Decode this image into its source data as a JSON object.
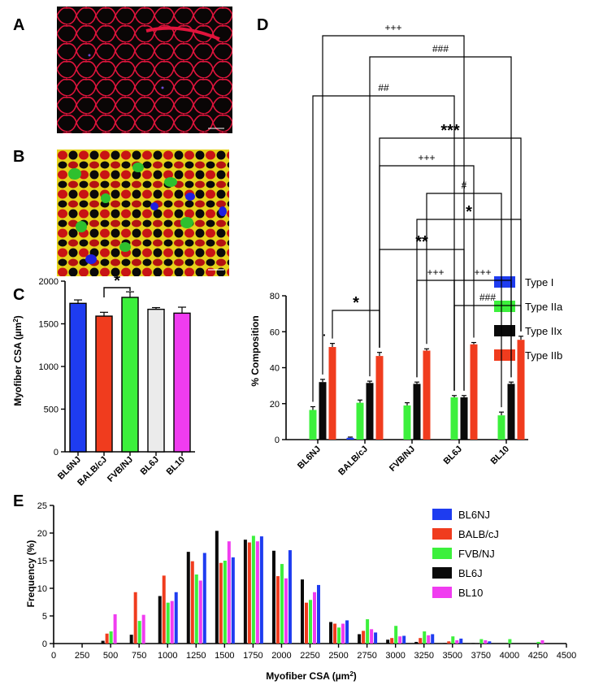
{
  "panel_labels": {
    "a": "A",
    "b": "B",
    "c": "C",
    "d": "D",
    "e": "E"
  },
  "micrograph_a": {
    "stain_colors": {
      "background": "#0a0606",
      "membrane": "#e0143c",
      "nuclei": "#3a2aa0"
    }
  },
  "micrograph_b": {
    "stain_colors": {
      "type_I": "#1f1fe0",
      "type_IIa": "#2ec02e",
      "type_IIx": "#0a0a0a",
      "type_IIb": "#c81414",
      "membrane": "#f2e020"
    }
  },
  "chart_data": [
    {
      "panel": "C",
      "type": "bar",
      "categories": [
        "BL6NJ",
        "BALB/cJ",
        "FVB/NJ",
        "BL6J",
        "BL10"
      ],
      "values": [
        1740,
        1590,
        1810,
        1670,
        1625
      ],
      "errors": [
        40,
        45,
        65,
        20,
        70
      ],
      "colors": [
        "#1e3cf0",
        "#f03c1e",
        "#3cf03c",
        "#ebebeb",
        "#f03cf0"
      ],
      "ylabel_prefix": "Myofiber CSA (µm",
      "ylabel_sup": "2",
      "ylabel_suffix": ")",
      "yticks": [
        "0",
        "500",
        "1000",
        "1500",
        "2000"
      ],
      "ylim": [
        0,
        2000
      ],
      "annotations": [
        {
          "between": [
            "BALB/cJ",
            "FVB/NJ"
          ],
          "label": "*"
        }
      ]
    },
    {
      "panel": "D",
      "type": "bar",
      "categories": [
        "BL6NJ",
        "BALB/cJ",
        "FVB/NJ",
        "BL6J",
        "BL10"
      ],
      "series": [
        {
          "name": "Type I",
          "color": "#1e3cf0",
          "values": [
            0,
            1.0,
            0,
            0,
            0
          ],
          "errors": [
            0,
            0.4,
            0,
            0,
            0
          ]
        },
        {
          "name": "Type IIa",
          "color": "#3cf03c",
          "values": [
            16.5,
            20.5,
            19.0,
            23.5,
            13.5
          ],
          "errors": [
            1.8,
            1.5,
            1.5,
            1.0,
            1.8
          ]
        },
        {
          "name": "Type IIx",
          "color": "#0a0a0a",
          "values": [
            32,
            31.5,
            31,
            23.5,
            31
          ],
          "errors": [
            1.5,
            1.0,
            1.0,
            1.0,
            1.0
          ]
        },
        {
          "name": "Type IIb",
          "color": "#f03c1e",
          "values": [
            51.5,
            46.5,
            49.5,
            53,
            55.5
          ],
          "errors": [
            2.0,
            2.0,
            1.0,
            1.0,
            2.0
          ]
        }
      ],
      "ylabel": "% Composition",
      "yticks": [
        "0",
        "20",
        "40",
        "60",
        "80"
      ],
      "ylim": [
        0,
        80
      ],
      "dot_annotation": "·",
      "significance": [
        {
          "label": "+++",
          "size": "small"
        },
        {
          "label": "###",
          "size": "small"
        },
        {
          "label": "##",
          "size": "small"
        },
        {
          "label": "***",
          "size": "big"
        },
        {
          "label": "+++",
          "size": "small"
        },
        {
          "label": "#",
          "size": "small"
        },
        {
          "label": "*",
          "size": "big"
        },
        {
          "label": "**",
          "size": "big"
        },
        {
          "label": "+++",
          "size": "small"
        },
        {
          "label": "+++",
          "size": "small"
        },
        {
          "label": "###",
          "size": "small"
        },
        {
          "label": "*",
          "size": "big"
        }
      ]
    },
    {
      "panel": "E",
      "type": "bar",
      "x": [
        500,
        750,
        1000,
        1250,
        1500,
        1750,
        2000,
        2250,
        2500,
        2750,
        3000,
        3250,
        3500,
        3750,
        4000,
        4250
      ],
      "series": [
        {
          "name": "BL6NJ",
          "color": "#1e3cf0",
          "values": [
            0,
            0,
            9.3,
            16.4,
            15.6,
            19.4,
            16.9,
            10.6,
            4.2,
            2.0,
            1.4,
            1.7,
            0.9,
            0.4,
            0,
            0
          ]
        },
        {
          "name": "BALB/cJ",
          "color": "#f03c1e",
          "values": [
            1.8,
            9.3,
            12.3,
            14.9,
            14.6,
            18.3,
            12.2,
            7.4,
            3.6,
            2.3,
            1.0,
            1.0,
            0.4,
            0,
            0,
            0
          ]
        },
        {
          "name": "FVB/NJ",
          "color": "#3cf03c",
          "values": [
            2.2,
            4.1,
            7.4,
            12.5,
            15.0,
            19.5,
            14.4,
            7.9,
            2.9,
            4.4,
            3.2,
            2.2,
            1.3,
            0.8,
            0.8,
            0.3
          ]
        },
        {
          "name": "BL6J",
          "color": "#0a0a0a",
          "values": [
            0.5,
            1.6,
            8.6,
            16.6,
            20.4,
            18.8,
            16.8,
            11.6,
            3.9,
            1.7,
            0.7,
            0.3,
            0.1,
            0.1,
            0,
            0
          ]
        },
        {
          "name": "BL10",
          "color": "#f03cf0",
          "values": [
            5.3,
            5.2,
            7.7,
            11.4,
            18.5,
            18.5,
            11.8,
            9.3,
            3.6,
            2.6,
            1.3,
            1.5,
            0.6,
            0.6,
            0,
            0.6
          ]
        }
      ],
      "xticks": [
        "0",
        "250",
        "500",
        "750",
        "1000",
        "1250",
        "1500",
        "1750",
        "2000",
        "2250",
        "2500",
        "2750",
        "3000",
        "3250",
        "3500",
        "3750",
        "4000",
        "4250",
        "4500"
      ],
      "yticks": [
        "0",
        "5",
        "10",
        "15",
        "20",
        "25"
      ],
      "xlim": [
        0,
        4500
      ],
      "ylim": [
        0,
        25
      ],
      "ylabel": "Frequency (%)",
      "xlabel_prefix": "Myofiber CSA (µm",
      "xlabel_sup": "2",
      "xlabel_suffix": ")"
    }
  ]
}
